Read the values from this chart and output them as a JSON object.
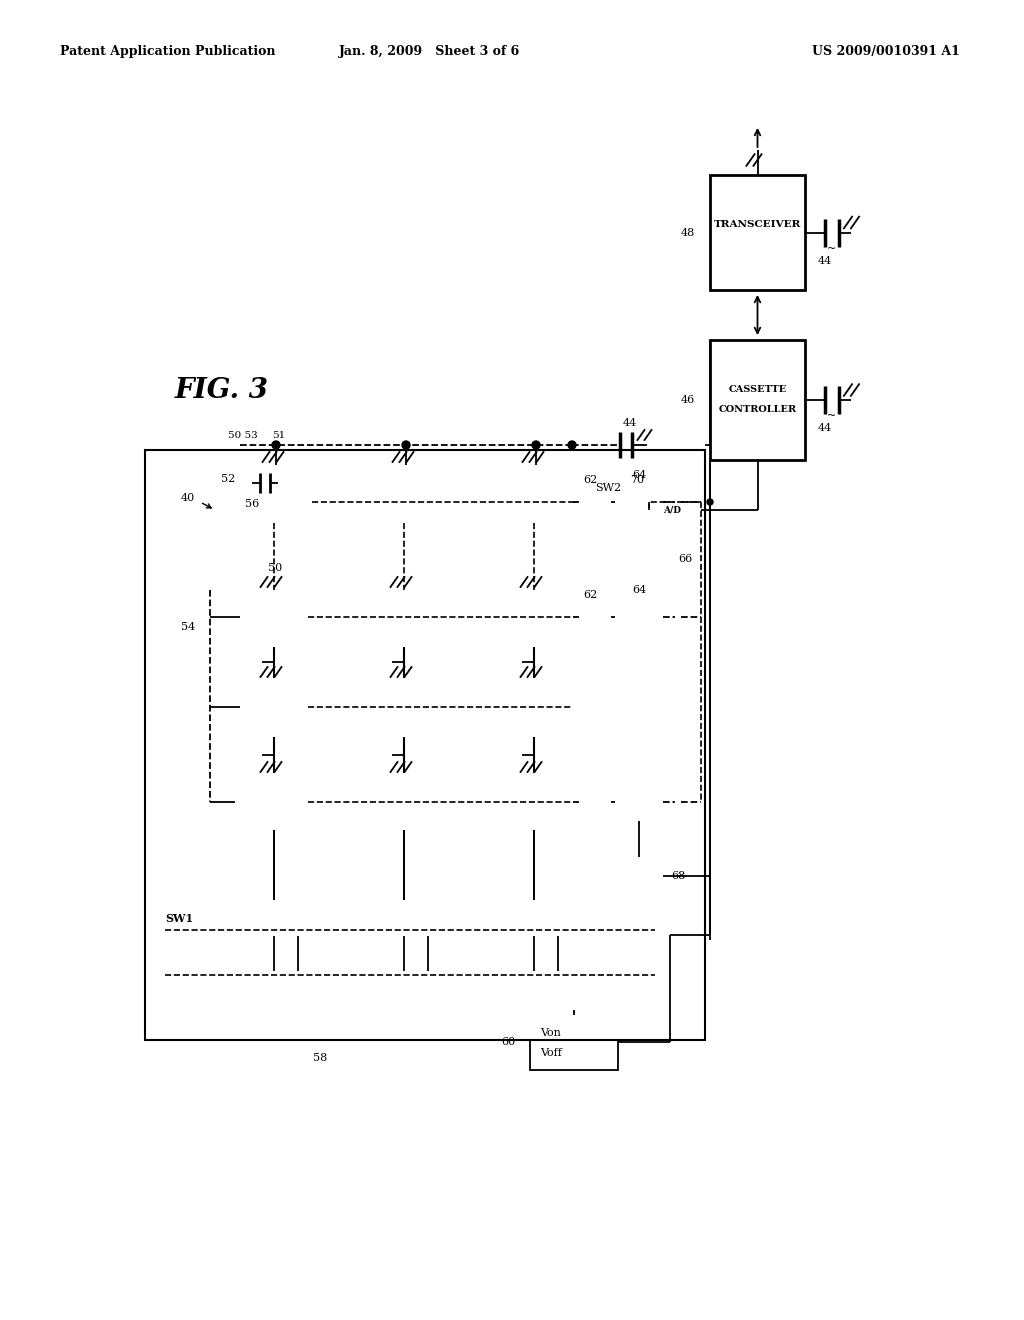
{
  "bg_color": "#ffffff",
  "header_left": "Patent Application Publication",
  "header_center": "Jan. 8, 2009   Sheet 3 of 6",
  "header_right": "US 2009/0010391 A1",
  "fig_label": "FIG. 3"
}
